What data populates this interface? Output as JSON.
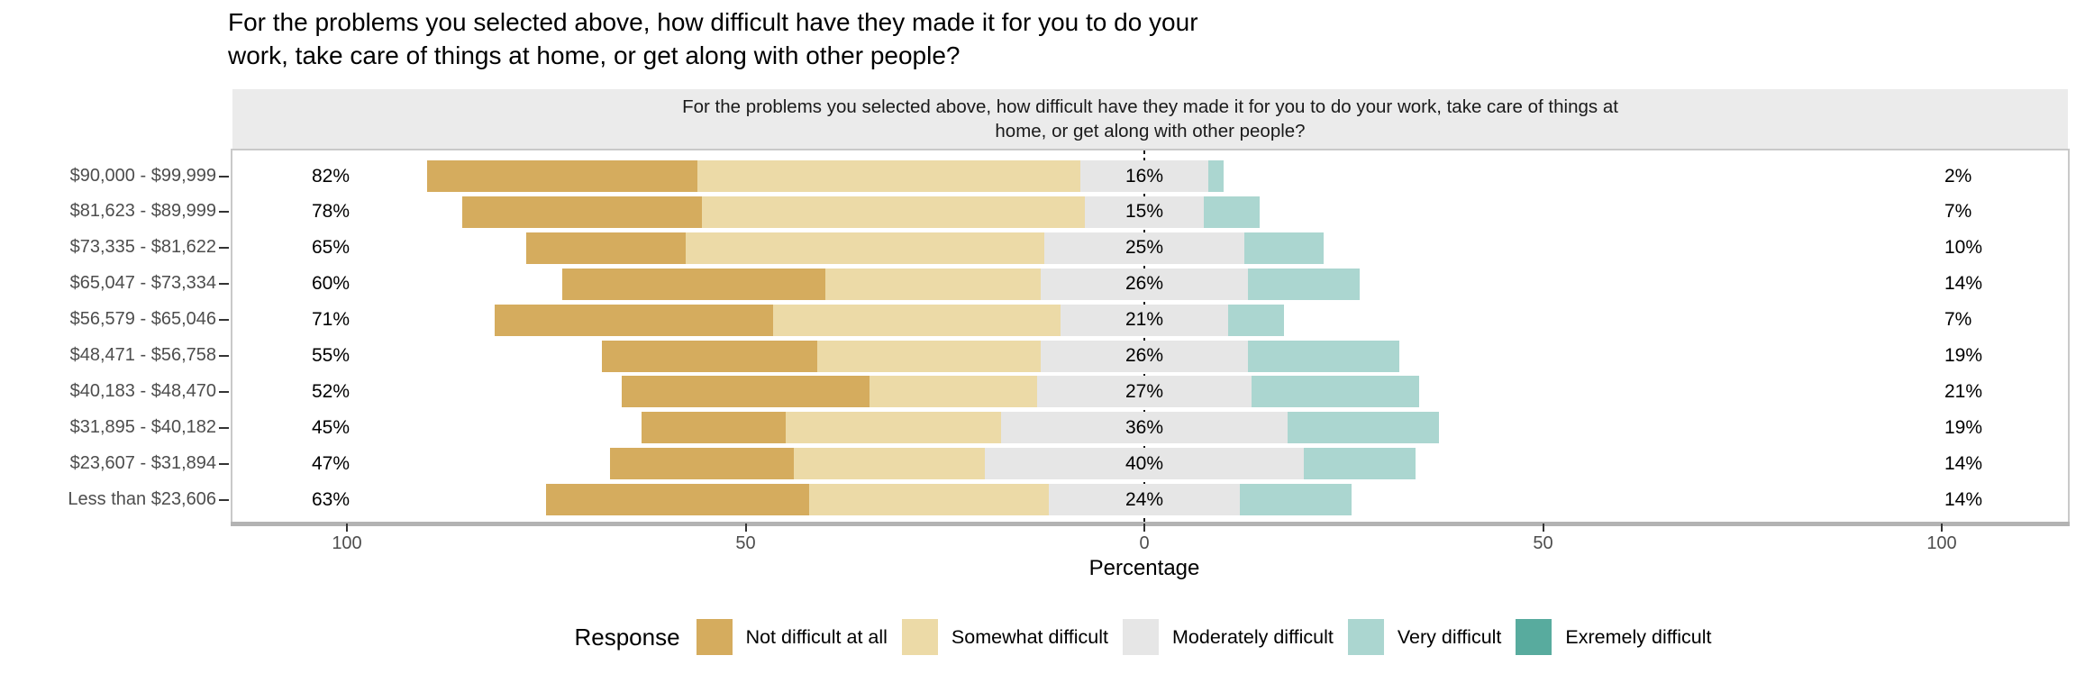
{
  "title": {
    "line1": "For the problems you selected above, how difficult have they made it for you to do your",
    "line2": "work, take care of things at home, or get along with other people?"
  },
  "facet_strip": {
    "line1": "For the problems you selected above, how difficult have they made it for you to do your work, take care of things at",
    "line2": "home, or get along with other people?"
  },
  "x_axis": {
    "label": "Percentage",
    "tick_labels": [
      "100",
      "50",
      "0",
      "50",
      "100"
    ],
    "tick_values": [
      -100,
      -50,
      0,
      50,
      100
    ]
  },
  "legend": {
    "title": "Response",
    "items": [
      {
        "label": "Not difficult at all",
        "color": "#D5AC5E"
      },
      {
        "label": "Somewhat difficult",
        "color": "#ECDAA7"
      },
      {
        "label": "Moderately difficult",
        "color": "#E6E6E6"
      },
      {
        "label": "Very difficult",
        "color": "#ABD6D0"
      },
      {
        "label": "Exremely difficult",
        "color": "#58AB9E"
      }
    ]
  },
  "colors": {
    "strip_bg": "#EBEBEB",
    "panel_border": "#C9C9C9",
    "axis_line": "#B3B3B3",
    "tick": "#333333",
    "axis_text": "#4D4D4D",
    "label_text": "#000000"
  },
  "chart_data": {
    "type": "bar",
    "subtype": "diverging_stacked_likert",
    "title": "For the problems you selected above, how difficult have they made it for you to do your work, take care of things at home, or get along with other people?",
    "xlabel": "Percentage",
    "ylabel": "",
    "xlim": [
      -114,
      116
    ],
    "center_line": 0,
    "grid": false,
    "legend_position": "bottom",
    "categories": [
      "$90,000 - $99,999",
      "$81,623 - $89,999",
      "$73,335 - $81,622",
      "$65,047 - $73,334",
      "$56,579 - $65,046",
      "$48,471 - $56,758",
      "$40,183 - $48,470",
      "$31,895 - $40,182",
      "$23,607 - $31,894",
      "Less than $23,606"
    ],
    "series": [
      {
        "name": "Not difficult at all",
        "values": [
          34,
          30,
          20,
          33,
          35,
          27,
          31,
          18,
          23,
          33
        ]
      },
      {
        "name": "Somewhat difficult",
        "values": [
          48,
          48,
          45,
          27,
          36,
          28,
          21,
          27,
          24,
          30
        ]
      },
      {
        "name": "Moderately difficult",
        "values": [
          16,
          15,
          25,
          26,
          21,
          26,
          27,
          36,
          40,
          24
        ]
      },
      {
        "name": "Very difficult",
        "values": [
          2,
          7,
          10,
          14,
          7,
          19,
          21,
          19,
          14,
          14
        ]
      },
      {
        "name": "Exremely difficult",
        "values": [
          0,
          0,
          0,
          0,
          0,
          0,
          0,
          0,
          0,
          0
        ]
      }
    ],
    "row_labels": {
      "left": [
        "82%",
        "78%",
        "65%",
        "60%",
        "71%",
        "55%",
        "52%",
        "45%",
        "47%",
        "63%"
      ],
      "center": [
        "16%",
        "15%",
        "25%",
        "26%",
        "21%",
        "26%",
        "27%",
        "36%",
        "40%",
        "24%"
      ],
      "right": [
        "2%",
        "7%",
        "10%",
        "14%",
        "7%",
        "19%",
        "21%",
        "19%",
        "14%",
        "14%"
      ]
    }
  }
}
